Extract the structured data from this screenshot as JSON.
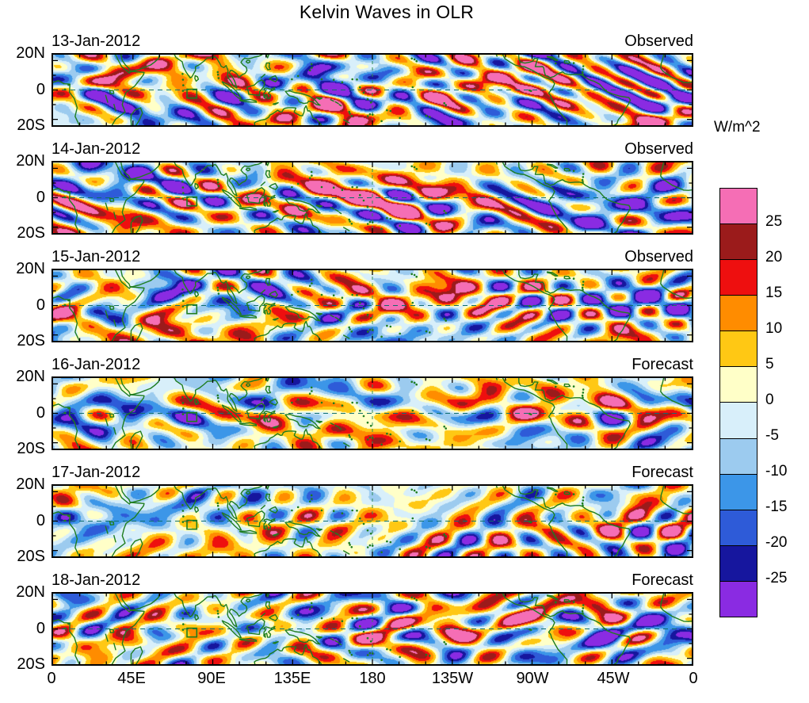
{
  "title": "Kelvin Waves in OLR",
  "chart_data": {
    "type": "heatmap",
    "subtype": "filled-contour longitude-latitude anomaly maps, 6 stacked daily panels",
    "title": "Kelvin Waves in OLR",
    "panels": [
      {
        "date": "13-Jan-2012",
        "source_label": "Observed"
      },
      {
        "date": "14-Jan-2012",
        "source_label": "Observed"
      },
      {
        "date": "15-Jan-2012",
        "source_label": "Observed"
      },
      {
        "date": "16-Jan-2012",
        "source_label": "Forecast"
      },
      {
        "date": "17-Jan-2012",
        "source_label": "Forecast"
      },
      {
        "date": "18-Jan-2012",
        "source_label": "Forecast"
      }
    ],
    "x_axis": {
      "tick_labels": [
        "0",
        "45E",
        "90E",
        "135E",
        "180",
        "135W",
        "90W",
        "45W",
        "0"
      ],
      "range_deg_lon": [
        0,
        360
      ]
    },
    "y_axis": {
      "tick_labels": [
        "20N",
        "0",
        "20S"
      ],
      "range_deg_lat": [
        -24,
        24
      ]
    },
    "colorbar": {
      "units_label": "W/m^2",
      "tick_labels": [
        "25",
        "20",
        "15",
        "10",
        "5",
        "0",
        "-5",
        "-10",
        "-15",
        "-20",
        "-25"
      ],
      "levels": [
        -25,
        -20,
        -15,
        -10,
        -5,
        0,
        5,
        10,
        15,
        20,
        25
      ],
      "colors_top_to_bottom": [
        "#F56EB5",
        "#9B1B1B",
        "#EE0F0F",
        "#FF8C00",
        "#FFC814",
        "#FFFFC8",
        "#D8EFFA",
        "#9CCBEF",
        "#3C96E8",
        "#2E5BD8",
        "#16169E",
        "#8A2BE2"
      ]
    },
    "overlays": {
      "coastline_color": "#1E7D1E",
      "equator_line_color": "#0E6E6E",
      "equator_line_style": "dashed horizontal at 0 latitude",
      "dateline_color": "#2E8B57",
      "dateline_style": "dashed vertical at 180 longitude",
      "target_box": "small green outline box near 75E-81E on the equator in every panel"
    },
    "value_note": "Filled contours of OLR anomalies between about -25 and +25 W/m^2 at 5 W/m^2 intervals"
  }
}
